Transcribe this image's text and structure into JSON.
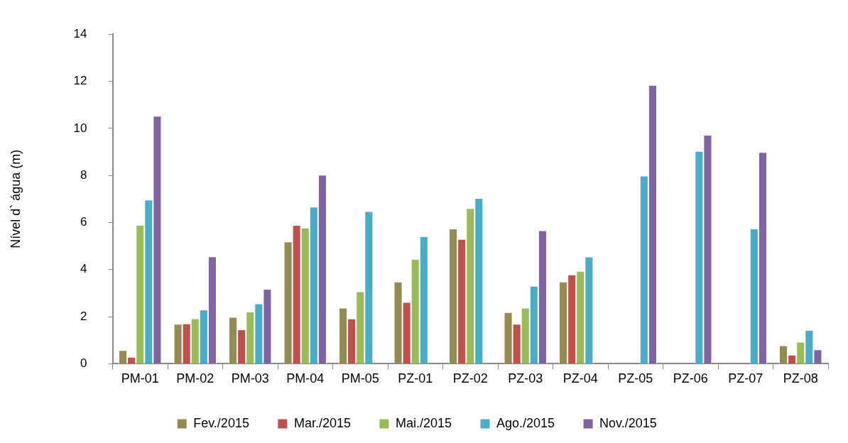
{
  "chart_data": {
    "type": "bar",
    "ylabel": "Nível d` água (m)",
    "categories": [
      "PM-01",
      "PM-02",
      "PM-03",
      "PM-04",
      "PM-05",
      "PZ-01",
      "PZ-02",
      "PZ-03",
      "PZ-04",
      "PZ-05",
      "PZ-06",
      "PZ-07",
      "PZ-08"
    ],
    "series": [
      {
        "name": "Fev./2015",
        "color": "#948a54",
        "values": [
          0.58,
          1.69,
          1.99,
          5.19,
          2.38,
          3.49,
          5.74,
          2.19,
          3.49,
          null,
          null,
          null,
          0.78
        ]
      },
      {
        "name": "Mar./2015",
        "color": "#c0504d",
        "values": [
          0.29,
          1.71,
          1.46,
          5.89,
          1.92,
          2.62,
          5.3,
          1.69,
          3.79,
          null,
          null,
          null,
          0.38
        ]
      },
      {
        "name": "Mai./2015",
        "color": "#9bbb59",
        "values": [
          5.9,
          1.93,
          2.21,
          5.78,
          3.07,
          4.45,
          6.61,
          2.38,
          3.94,
          null,
          null,
          null,
          0.93
        ]
      },
      {
        "name": "Ago./2015",
        "color": "#4bacc6",
        "values": [
          6.97,
          2.3,
          2.56,
          6.67,
          6.48,
          5.42,
          7.04,
          3.31,
          4.55,
          7.99,
          9.04,
          5.74,
          1.44
        ]
      },
      {
        "name": "Nov./2015",
        "color": "#8064a2",
        "values": [
          10.53,
          4.56,
          3.18,
          8.03,
          null,
          null,
          null,
          5.67,
          null,
          11.84,
          9.72,
          8.99,
          0.61
        ]
      }
    ],
    "ylim": [
      0,
      14
    ],
    "yticks": [
      0,
      2,
      4,
      6,
      8,
      10,
      12,
      14
    ],
    "grid": false,
    "legend": "bottom"
  }
}
